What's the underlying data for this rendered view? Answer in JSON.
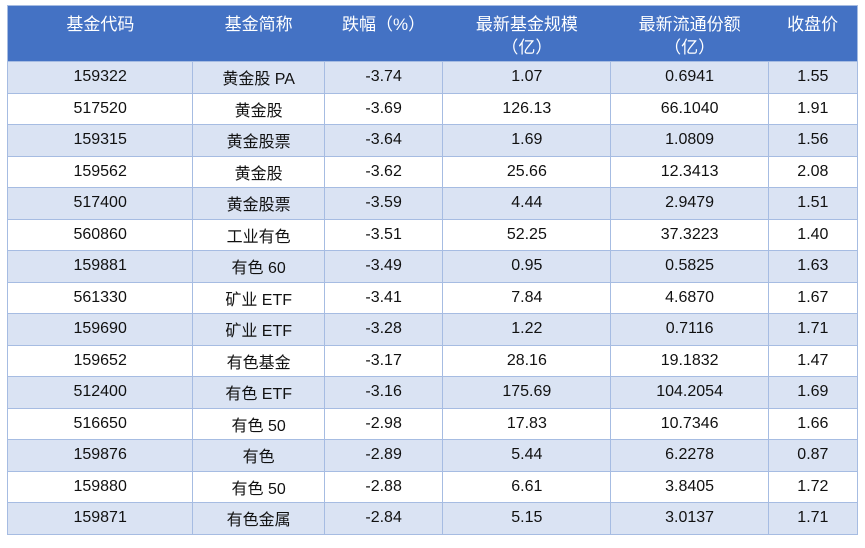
{
  "colors": {
    "header_bg": "#4472c4",
    "header_text": "#ffffff",
    "row_alt_bg": "#dae3f3",
    "row_bg": "#ffffff",
    "border": "#a6bce2",
    "body_text": "#111111"
  },
  "table": {
    "columns": [
      {
        "key": "code",
        "label": "基金代码",
        "sublabel": ""
      },
      {
        "key": "name",
        "label": "基金简称",
        "sublabel": ""
      },
      {
        "key": "decline_pct",
        "label": "跌幅（%）",
        "sublabel": ""
      },
      {
        "key": "fund_scale",
        "label": "最新基金规模",
        "sublabel": "（亿）"
      },
      {
        "key": "circulating_shares",
        "label": "最新流通份额",
        "sublabel": "（亿）"
      },
      {
        "key": "close_price",
        "label": "收盘价",
        "sublabel": ""
      }
    ],
    "rows": [
      [
        "159322",
        "黄金股 PA",
        "-3.74",
        "1.07",
        "0.6941",
        "1.55"
      ],
      [
        "517520",
        "黄金股",
        "-3.69",
        "126.13",
        "66.1040",
        "1.91"
      ],
      [
        "159315",
        "黄金股票",
        "-3.64",
        "1.69",
        "1.0809",
        "1.56"
      ],
      [
        "159562",
        "黄金股",
        "-3.62",
        "25.66",
        "12.3413",
        "2.08"
      ],
      [
        "517400",
        "黄金股票",
        "-3.59",
        "4.44",
        "2.9479",
        "1.51"
      ],
      [
        "560860",
        "工业有色",
        "-3.51",
        "52.25",
        "37.3223",
        "1.40"
      ],
      [
        "159881",
        "有色 60",
        "-3.49",
        "0.95",
        "0.5825",
        "1.63"
      ],
      [
        "561330",
        "矿业 ETF",
        "-3.41",
        "7.84",
        "4.6870",
        "1.67"
      ],
      [
        "159690",
        "矿业 ETF",
        "-3.28",
        "1.22",
        "0.7116",
        "1.71"
      ],
      [
        "159652",
        "有色基金",
        "-3.17",
        "28.16",
        "19.1832",
        "1.47"
      ],
      [
        "512400",
        "有色 ETF",
        "-3.16",
        "175.69",
        "104.2054",
        "1.69"
      ],
      [
        "516650",
        "有色 50",
        "-2.98",
        "17.83",
        "10.7346",
        "1.66"
      ],
      [
        "159876",
        "有色",
        "-2.89",
        "5.44",
        "6.2278",
        "0.87"
      ],
      [
        "159880",
        "有色 50",
        "-2.88",
        "6.61",
        "3.8405",
        "1.72"
      ],
      [
        "159871",
        "有色金属",
        "-2.84",
        "5.15",
        "3.0137",
        "1.71"
      ]
    ]
  }
}
